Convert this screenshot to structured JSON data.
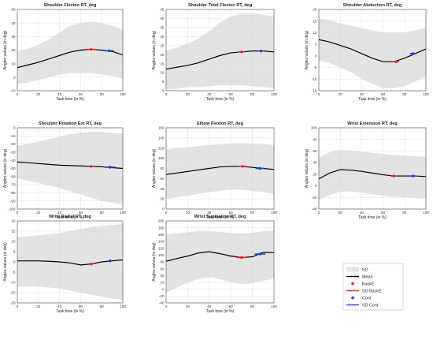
{
  "colors": {
    "sd": "#e3e3e3",
    "mean": "#000000",
    "backe": "#e8202a",
    "cont": "#1b3fd6",
    "grid": "#d9d9d9"
  },
  "legend": {
    "items": [
      {
        "label": "SD",
        "kind": "patch",
        "color": "#e3e3e3"
      },
      {
        "label": "Mean",
        "kind": "line",
        "color": "#000000"
      },
      {
        "label": "BackE",
        "kind": "dot",
        "color": "#e8202a"
      },
      {
        "label": "SD BackE",
        "kind": "line",
        "color": "#e8202a"
      },
      {
        "label": "Cont",
        "kind": "dot",
        "color": "#1b3fd6"
      },
      {
        "label": "SD Cont",
        "kind": "line",
        "color": "#1b3fd6"
      }
    ]
  },
  "chart_data": [
    {
      "type": "line",
      "title": "Shoulder Flexion RT, deg",
      "xlabel": "Task time (in %)",
      "ylabel": "Angles values (in deg)",
      "xlim": [
        0,
        100
      ],
      "ylim": [
        -10,
        50
      ],
      "grid": true,
      "xticks": [
        0,
        20,
        40,
        60,
        80,
        100
      ],
      "yticks": [
        -10,
        0,
        10,
        20,
        30,
        40,
        50
      ],
      "x": [
        0,
        10,
        20,
        30,
        40,
        50,
        60,
        70,
        80,
        90,
        100
      ],
      "mean": [
        7,
        9,
        11,
        13.5,
        16,
        18.5,
        20,
        20.5,
        20,
        19,
        16.5
      ],
      "sd_upper": [
        19,
        21,
        24,
        28,
        33,
        38,
        40,
        41,
        40,
        38,
        35
      ],
      "sd_lower": [
        -5,
        -4,
        -2,
        0,
        2,
        3,
        3,
        3,
        2,
        1,
        -1
      ],
      "backe": {
        "x": 70,
        "y": 20.5,
        "sd": 4.5
      },
      "cont": {
        "x": 87,
        "y": 19.5,
        "sd": 4.5
      }
    },
    {
      "type": "line",
      "title": "Shoulder Total Flexion RT, deg",
      "xlabel": "Task time (in %)",
      "ylabel": "Angles values (in deg)",
      "xlim": [
        0,
        100
      ],
      "ylim": [
        0,
        45
      ],
      "grid": true,
      "xticks": [
        0,
        20,
        40,
        60,
        80,
        100
      ],
      "yticks": [
        0,
        5,
        10,
        15,
        20,
        25,
        30,
        35,
        40,
        45
      ],
      "x": [
        0,
        10,
        20,
        30,
        40,
        50,
        60,
        70,
        80,
        90,
        100
      ],
      "mean": [
        12,
        13,
        14,
        15.5,
        17.5,
        19.5,
        21,
        21.5,
        22,
        22,
        21.5
      ],
      "sd_upper": [
        22,
        24,
        26,
        29,
        33,
        38,
        41,
        43,
        43,
        42,
        41
      ],
      "sd_lower": [
        1,
        1,
        2,
        2,
        2.5,
        3,
        3,
        3,
        2.5,
        2,
        1.5
      ],
      "backe": {
        "x": 70,
        "y": 21.5,
        "sd": 3
      },
      "cont": {
        "x": 88,
        "y": 22,
        "sd": 3
      }
    },
    {
      "type": "line",
      "title": "Shoulder Abduction RT, deg",
      "xlabel": "Task time (in %)",
      "ylabel": "Angles values (in deg)",
      "xlim": [
        0,
        100
      ],
      "ylim": [
        -15,
        20
      ],
      "grid": true,
      "xticks": [
        0,
        20,
        40,
        60,
        80,
        100
      ],
      "yticks": [
        -15,
        -10,
        -5,
        0,
        5,
        10,
        15,
        20
      ],
      "x": [
        0,
        10,
        20,
        30,
        40,
        50,
        60,
        70,
        80,
        90,
        100
      ],
      "mean": [
        7,
        6,
        4.5,
        3,
        1,
        -1,
        -2.5,
        -2.5,
        -1,
        1,
        3
      ],
      "sd_upper": [
        16,
        15.5,
        14,
        13,
        12,
        11,
        10,
        10,
        10,
        11,
        12
      ],
      "sd_lower": [
        -2,
        -3,
        -5,
        -7,
        -10,
        -12,
        -14,
        -14,
        -13,
        -11,
        -9
      ],
      "backe": {
        "x": 72,
        "y": -2.5,
        "sd": 3
      },
      "cont": {
        "x": 88,
        "y": 1,
        "sd": 3
      }
    },
    {
      "type": "line",
      "title": "Shoulder Rotation Ext RT, deg",
      "xlabel": "Task time (in %)",
      "ylabel": "Angles values (in deg)",
      "xlim": [
        0,
        100
      ],
      "ylim": [
        -100,
        0
      ],
      "grid": true,
      "xticks": [
        0,
        20,
        40,
        60,
        80,
        100
      ],
      "yticks": [
        -100,
        -90,
        -80,
        -70,
        -60,
        -50,
        -40,
        -30,
        -20,
        -10,
        0
      ],
      "x": [
        0,
        10,
        20,
        30,
        40,
        50,
        60,
        70,
        80,
        90,
        100
      ],
      "mean": [
        -42,
        -43,
        -44,
        -45,
        -46,
        -46.5,
        -47,
        -47.5,
        -48,
        -49,
        -50
      ],
      "sd_upper": [
        -22,
        -20,
        -17,
        -14,
        -11,
        -8,
        -6,
        -5,
        -5,
        -6,
        -7
      ],
      "sd_lower": [
        -62,
        -65,
        -68,
        -71,
        -74,
        -78,
        -82,
        -86,
        -90,
        -92,
        -95
      ],
      "backe": {
        "x": 70,
        "y": -47.5,
        "sd": 2
      },
      "cont": {
        "x": 88,
        "y": -48.5,
        "sd": 5
      }
    },
    {
      "type": "line",
      "title": "Elbow Flexion RT, deg",
      "xlabel": "Task time (in %)",
      "ylabel": "Angles values (in deg)",
      "xlim": [
        0,
        100
      ],
      "ylim": [
        0,
        160
      ],
      "grid": true,
      "xticks": [
        0,
        20,
        40,
        60,
        80,
        100
      ],
      "yticks": [
        0,
        20,
        40,
        60,
        80,
        100,
        120,
        140,
        160
      ],
      "x": [
        0,
        10,
        20,
        30,
        40,
        50,
        60,
        70,
        80,
        90,
        100
      ],
      "mean": [
        68,
        71,
        74,
        77,
        80,
        83,
        84,
        84,
        82,
        80,
        78
      ],
      "sd_upper": [
        117,
        120,
        122,
        124,
        126,
        128,
        129,
        130,
        129,
        128,
        126
      ],
      "sd_lower": [
        20,
        23,
        26,
        30,
        33,
        36,
        38,
        38,
        36,
        33,
        30
      ],
      "backe": {
        "x": 71,
        "y": 84,
        "sd": 4
      },
      "cont": {
        "x": 87,
        "y": 80,
        "sd": 4
      }
    },
    {
      "type": "line",
      "title": "Wrist Extension RT, deg",
      "xlabel": "Task time (in %)",
      "ylabel": "Angles values (in deg)",
      "xlim": [
        0,
        100
      ],
      "ylim": [
        -40,
        100
      ],
      "grid": true,
      "xticks": [
        0,
        20,
        40,
        60,
        80,
        100
      ],
      "yticks": [
        -40,
        -20,
        0,
        20,
        40,
        60,
        80,
        100
      ],
      "x": [
        0,
        10,
        20,
        30,
        40,
        50,
        60,
        70,
        80,
        90,
        100
      ],
      "mean": [
        12,
        22,
        28,
        27,
        25,
        22,
        19,
        17,
        17,
        17,
        16
      ],
      "sd_upper": [
        48,
        58,
        62,
        61,
        59,
        57,
        55,
        53,
        52,
        51,
        50
      ],
      "sd_lower": [
        -24,
        -16,
        -10,
        -10,
        -12,
        -14,
        -17,
        -19,
        -20,
        -21,
        -22
      ],
      "backe": {
        "x": 70,
        "y": 17,
        "sd": 3
      },
      "cont": {
        "x": 88,
        "y": 17,
        "sd": 3
      }
    },
    {
      "type": "line",
      "title": "Wrist Radial RT, deg",
      "xlabel": "Task time (in %)",
      "ylabel": "Angles values (in deg)",
      "xlim": [
        0,
        100
      ],
      "ylim": [
        -20,
        20
      ],
      "grid": true,
      "xticks": [
        0,
        20,
        40,
        60,
        80,
        100
      ],
      "yticks": [
        -20,
        -15,
        -10,
        -5,
        0,
        5,
        10,
        15,
        20
      ],
      "x": [
        0,
        10,
        20,
        30,
        40,
        50,
        60,
        70,
        80,
        90,
        100
      ],
      "mean": [
        0.5,
        0.5,
        0.5,
        0.3,
        0,
        -0.5,
        -1.5,
        -1.0,
        0,
        0.5,
        1
      ],
      "sd_upper": [
        12,
        12.5,
        13,
        13.5,
        14,
        15,
        16,
        17,
        17.5,
        18,
        18.5
      ],
      "sd_lower": [
        -12,
        -12,
        -12,
        -12.5,
        -13,
        -14,
        -15,
        -16,
        -17,
        -18,
        -18.5
      ],
      "backe": {
        "x": 70,
        "y": -1.0,
        "sd": 2
      },
      "cont": {
        "x": 88,
        "y": 0.5,
        "sd": 2
      }
    },
    {
      "type": "line",
      "title": "Wrist Supination RT, deg",
      "xlabel": "Task time (in %)",
      "ylabel": "Angles values (in deg)",
      "xlim": [
        0,
        100
      ],
      "ylim": [
        -40,
        200
      ],
      "grid": true,
      "xticks": [
        0,
        20,
        40,
        60,
        80,
        100
      ],
      "yticks": [
        -40,
        -20,
        0,
        20,
        40,
        60,
        80,
        100,
        120,
        140,
        160,
        180,
        200
      ],
      "x": [
        0,
        10,
        20,
        30,
        40,
        50,
        60,
        70,
        80,
        90,
        100
      ],
      "mean": [
        82,
        90,
        97,
        106,
        110,
        104,
        97,
        93,
        95,
        108,
        107
      ],
      "sd_upper": [
        160,
        163,
        167,
        170,
        170,
        168,
        165,
        163,
        165,
        170,
        172
      ],
      "sd_lower": [
        -10,
        5,
        20,
        30,
        35,
        30,
        20,
        15,
        18,
        25,
        30
      ],
      "backe": {
        "x": 70,
        "y": 93,
        "sd": 5
      },
      "cont": {
        "x": 87,
        "y": 103,
        "sd": 5
      }
    }
  ]
}
